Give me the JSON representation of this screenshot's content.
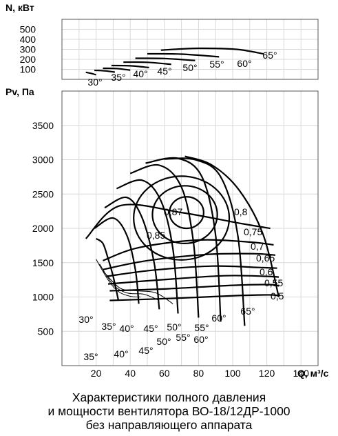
{
  "caption": [
    "Характеристики полного давления",
    "и мощности вентилятора ВО-18/12ДР-1000",
    "без направляющего аппарата"
  ],
  "colors": {
    "ink": "#000000",
    "grid": "#d8d8d8",
    "background": "#ffffff"
  },
  "chart_data": [
    {
      "type": "line",
      "ylabel": "N, кВт",
      "ylim": [
        0,
        600
      ],
      "y_ticks": [
        100,
        200,
        300,
        400,
        500
      ],
      "xlim": [
        0,
        150
      ],
      "grid": true,
      "series": [
        {
          "name": "30°",
          "x": [
            14,
            17,
            20
          ],
          "y": [
            70,
            60,
            45
          ]
        },
        {
          "name": "35°",
          "x": [
            19,
            25,
            31
          ],
          "y": [
            90,
            85,
            72
          ]
        },
        {
          "name": "40°",
          "x": [
            24,
            32,
            40
          ],
          "y": [
            110,
            108,
            92
          ]
        },
        {
          "name": "45°",
          "x": [
            29,
            40,
            51
          ],
          "y": [
            138,
            135,
            118
          ]
        },
        {
          "name": "50°",
          "x": [
            36,
            50,
            64
          ],
          "y": [
            172,
            170,
            150
          ]
        },
        {
          "name": "55°",
          "x": [
            43,
            60,
            78
          ],
          "y": [
            210,
            208,
            188
          ]
        },
        {
          "name": "60°",
          "x": [
            50,
            70,
            92
          ],
          "y": [
            255,
            252,
            225
          ]
        },
        {
          "name": "65°",
          "x": [
            58,
            80,
            102,
            118
          ],
          "y": [
            292,
            310,
            300,
            255
          ]
        }
      ],
      "labels": [
        "30°",
        "35°",
        "40°",
        "45°",
        "50°",
        "55°",
        "60°",
        "65°"
      ]
    },
    {
      "type": "line",
      "ylabel": "Pv, Па",
      "xlabel": "Q, м³/с",
      "xlim": [
        0,
        150
      ],
      "ylim": [
        0,
        4000
      ],
      "x_ticks": [
        20,
        40,
        60,
        80,
        100,
        120,
        140
      ],
      "y_ticks": [
        500,
        1000,
        1500,
        2000,
        2500,
        3000,
        3500
      ],
      "grid": true,
      "series": [
        {
          "name": "30°",
          "x": [
            20,
            24,
            27,
            30,
            33
          ],
          "y": [
            1850,
            1780,
            1560,
            1300,
            960
          ]
        },
        {
          "name": "35°",
          "x": [
            19,
            30,
            38,
            43,
            45
          ],
          "y": [
            2000,
            2150,
            1900,
            1400,
            900
          ]
        },
        {
          "name": "40°",
          "x": [
            25,
            38,
            47,
            54,
            57
          ],
          "y": [
            2300,
            2450,
            2150,
            1500,
            820
          ]
        },
        {
          "name": "45°",
          "x": [
            32,
            47,
            58,
            65,
            68
          ],
          "y": [
            2580,
            2700,
            2400,
            1700,
            760
          ]
        },
        {
          "name": "50°",
          "x": [
            40,
            57,
            70,
            77,
            80
          ],
          "y": [
            2800,
            2920,
            2600,
            1800,
            700
          ]
        },
        {
          "name": "55°",
          "x": [
            49,
            68,
            82,
            90,
            93
          ],
          "y": [
            2950,
            3020,
            2750,
            1900,
            640
          ]
        },
        {
          "name": "60°",
          "x": [
            60,
            78,
            93,
            103,
            107
          ],
          "y": [
            3010,
            3000,
            2750,
            1900,
            580
          ]
        },
        {
          "name": "65°",
          "x": [
            72,
            88,
            104,
            118,
            127
          ],
          "y": [
            3050,
            2920,
            2550,
            1900,
            1000
          ]
        },
        {
          "name": "0,8",
          "x": [
            14,
            34,
            70,
            105,
            122
          ],
          "y": [
            1850,
            2330,
            2230,
            2070,
            2000
          ]
        },
        {
          "name": "0,75",
          "x": [
            24,
            45,
            80,
            110,
            124
          ],
          "y": [
            1530,
            1720,
            1830,
            1800,
            1760
          ]
        },
        {
          "name": "0,7",
          "x": [
            24,
            50,
            85,
            113,
            125
          ],
          "y": [
            1400,
            1530,
            1620,
            1630,
            1610
          ]
        },
        {
          "name": "0,65",
          "x": [
            26,
            53,
            88,
            115,
            126
          ],
          "y": [
            1300,
            1390,
            1450,
            1430,
            1420
          ]
        },
        {
          "name": "0,6",
          "x": [
            27,
            58,
            95,
            120,
            127
          ],
          "y": [
            1190,
            1250,
            1310,
            1300,
            1290
          ]
        },
        {
          "name": "0,55",
          "x": [
            28,
            62,
            100,
            122,
            127
          ],
          "y": [
            1090,
            1120,
            1170,
            1180,
            1160
          ]
        },
        {
          "name": "0,5",
          "x": [
            28,
            65,
            102,
            123,
            127
          ],
          "y": [
            950,
            980,
            1020,
            1030,
            1010
          ]
        }
      ],
      "contours": [
        {
          "label": "0,87",
          "center": [
            73,
            2230
          ],
          "rx": 10,
          "ry": 230
        },
        {
          "label": "0,85",
          "center": [
            72,
            2200
          ],
          "rx": 19,
          "ry": 420
        },
        {
          "label": "inner",
          "center": [
            70,
            2150
          ],
          "rx": 28,
          "ry": 610
        }
      ],
      "blade_angle_labels": [
        "30°",
        "35°",
        "40°",
        "45°",
        "50°",
        "55°",
        "60°",
        "65°"
      ],
      "efficiency_labels": [
        "0,87",
        "0,85",
        "0,8",
        "0,75",
        "0,7",
        "0,65",
        "0,6",
        "0,55",
        "0,5"
      ]
    }
  ]
}
